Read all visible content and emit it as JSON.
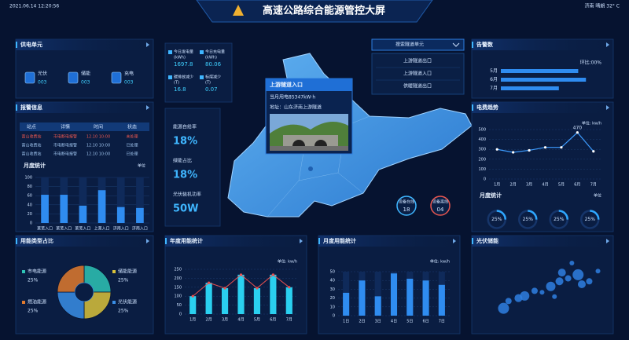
{
  "header": {
    "datetime": "2021.06.14 12:20:56",
    "title": "高速公路综合能源管控大屏",
    "weather": "济南 晴朗 32° C"
  },
  "supply": {
    "title": "供电单元",
    "items": [
      {
        "label": "光伏",
        "value": "003"
      },
      {
        "label": "储能",
        "value": "003"
      },
      {
        "label": "充电",
        "value": "003"
      }
    ]
  },
  "alarms": {
    "title": "报警信息",
    "table": {
      "columns": [
        "站点",
        "详情",
        "时间",
        "状态"
      ],
      "rows": [
        [
          "富山收费站",
          "市电断电报警",
          "12.10 10:00",
          "未处理"
        ],
        [
          "富山收费站",
          "市电断电报警",
          "12.10 10:00",
          "已处理"
        ],
        [
          "富山收费站",
          "市电断电报警",
          "12.10 10:00",
          "已处理"
        ]
      ],
      "row_colors": [
        "#e8564f",
        "#9cc0ea",
        "#9cc0ea"
      ]
    }
  },
  "stats": [
    {
      "label": "今日发电量",
      "unit": "(kWh)",
      "value": "1697.8"
    },
    {
      "label": "今日充电量",
      "unit": "(kWh)",
      "value": "80.06"
    },
    {
      "label": "碳排放减少",
      "unit": "(T)",
      "value": "16.8"
    },
    {
      "label": "标煤减少",
      "unit": "(T)",
      "value": "0.07"
    }
  ],
  "ratios": [
    {
      "label": "能源自给率",
      "value": "18%"
    },
    {
      "label": "绿能占比",
      "value": "18%"
    },
    {
      "label": "光伏装机功率",
      "value": "50W"
    }
  ],
  "map": {
    "popup": {
      "title": "上游隧道入口",
      "usage": "当月用电85347kW·h",
      "address": "地址：山东济南上游隧道"
    },
    "devices": [
      {
        "label": "设备在线",
        "value": "18"
      },
      {
        "label": "设备离线",
        "value": "04"
      }
    ]
  },
  "selector": {
    "title": "搜索隧道单元",
    "options": [
      "上游隧道出口",
      "上游隧道入口",
      "供暖隧道出口"
    ]
  },
  "chart_data": [
    {
      "type": "bar",
      "title": "月度统计",
      "unit": "单位",
      "categories": [
        "莱芜入口",
        "莱芜入口",
        "莱芜入口",
        "上莱入口",
        "济南入口",
        "济南入口"
      ],
      "values": [
        62,
        62,
        38,
        72,
        35,
        33
      ],
      "ylim": [
        0,
        100
      ],
      "yticks": [
        0,
        20,
        40,
        60,
        80,
        100
      ],
      "color": "#2f8cf0",
      "background_bars": true
    },
    {
      "type": "hbar",
      "title": "告警数",
      "annotation": "环比:00%",
      "categories": [
        "5月",
        "6月",
        "7月"
      ],
      "values": [
        80,
        88,
        60
      ],
      "xlim": [
        0,
        100
      ],
      "color": "#2f8cf0"
    },
    {
      "type": "line",
      "title": "电费趋势",
      "unit": "单位: kw/h",
      "categories": [
        "1月",
        "2月",
        "3月",
        "4月",
        "5月",
        "6月",
        "7月"
      ],
      "values": [
        300,
        270,
        290,
        320,
        320,
        470,
        280
      ],
      "ylim": [
        0,
        500
      ],
      "yticks": [
        0,
        100,
        200,
        300,
        400,
        500
      ],
      "color": "#3d9cff",
      "grid": true
    },
    {
      "type": "gauge",
      "title": "月度统计",
      "unit": "单位",
      "values": [
        25,
        25,
        25,
        25
      ],
      "value_labels": [
        "25%",
        "25%",
        "25%",
        "25%"
      ],
      "ylim": [
        0,
        100
      ],
      "color": "#2fa8ff"
    },
    {
      "type": "pie",
      "title": "用能类型占比",
      "categories": [
        "市电能源",
        "储能能源",
        "光伏能源",
        "燃油能源"
      ],
      "values": [
        25,
        25,
        25,
        25
      ],
      "value_labels": [
        "25%",
        "25%",
        "25%",
        "25%"
      ],
      "colors": [
        "#2ec4b6",
        "#d9c23a",
        "#3a8ee6",
        "#e07a2e"
      ]
    },
    {
      "type": "bar",
      "title": "年度用能统计",
      "unit": "单位: kw/h",
      "categories": [
        "1月",
        "2月",
        "3月",
        "4月",
        "5月",
        "6月",
        "7月"
      ],
      "values": [
        100,
        175,
        145,
        220,
        145,
        220,
        150
      ],
      "ylim": [
        0,
        250
      ],
      "yticks": [
        0,
        50,
        100,
        150,
        200,
        250
      ],
      "color": "#2ad0f0",
      "line_color": "#e8504f",
      "grid": true
    },
    {
      "type": "bar",
      "title": "月度用能统计",
      "unit": "单位: kw/h",
      "categories": [
        "1日",
        "2日",
        "3日",
        "4日",
        "5日",
        "6日",
        "7日"
      ],
      "values": [
        26,
        40,
        22,
        48,
        42,
        40,
        35
      ],
      "ylim": [
        0,
        50
      ],
      "yticks": [
        0,
        10,
        20,
        30,
        40,
        50
      ],
      "color": "#2f8cf0",
      "background_bars": true,
      "grid": true
    },
    {
      "type": "scatter",
      "title": "光伏储能",
      "x": [
        18,
        22,
        30,
        35,
        43,
        49,
        56,
        63,
        70,
        78,
        81,
        87,
        59,
        94,
        65,
        73
      ],
      "values": [
        24,
        34,
        38,
        41,
        48,
        46,
        54,
        61,
        65,
        70,
        57,
        61,
        40,
        75,
        73,
        86
      ],
      "sizes": [
        7,
        4,
        5,
        6,
        4,
        3,
        6,
        5,
        4,
        7,
        5,
        4,
        3,
        3,
        5,
        3
      ],
      "xlim": [
        0,
        100
      ],
      "ylim": [
        0,
        100
      ],
      "color": "#2f7fe0"
    }
  ]
}
